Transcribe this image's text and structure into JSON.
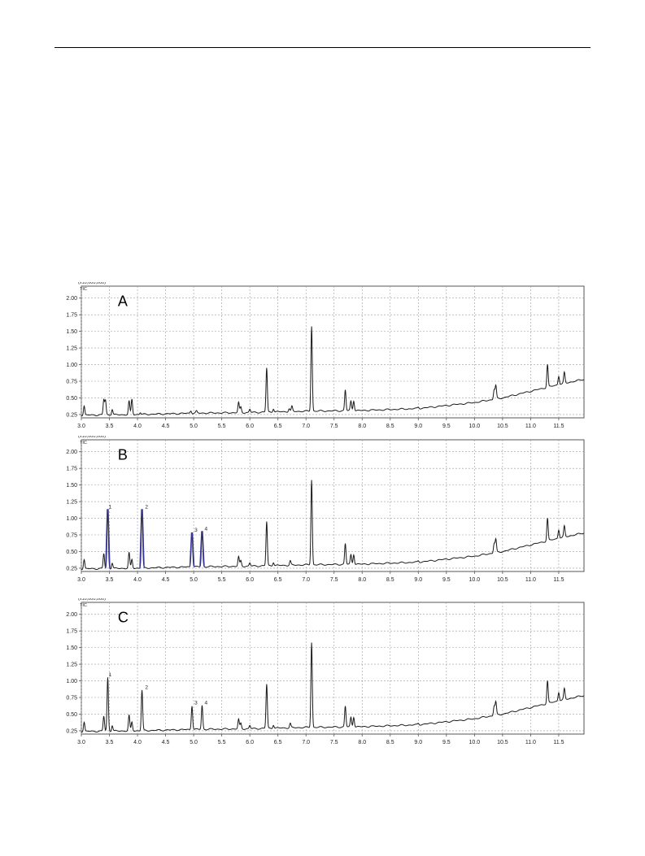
{
  "chart_data": [
    {
      "type": "line",
      "panel_label": "A",
      "scale_label": "(x10,000,000)",
      "trace_label": "TIC",
      "xlim": [
        3.0,
        11.95
      ],
      "ylim": [
        0.2,
        2.18
      ],
      "x_ticks": [
        "3.0",
        "3.5",
        "4.0",
        "4.5",
        "5.0",
        "5.5",
        "6.0",
        "6.5",
        "7.0",
        "7.5",
        "8.0",
        "8.5",
        "9.0",
        "9.5",
        "10.0",
        "10.5",
        "11.0",
        "11.5"
      ],
      "y_ticks": [
        "0.25",
        "0.50",
        "0.75",
        "1.00",
        "1.25",
        "1.50",
        "1.75",
        "2.00"
      ],
      "grid": true,
      "baseline": [
        [
          3.0,
          0.24
        ],
        [
          4.0,
          0.25
        ],
        [
          5.0,
          0.27
        ],
        [
          6.0,
          0.28
        ],
        [
          7.0,
          0.3
        ],
        [
          8.0,
          0.31
        ],
        [
          9.0,
          0.34
        ],
        [
          10.0,
          0.43
        ],
        [
          10.5,
          0.5
        ],
        [
          11.0,
          0.6
        ],
        [
          11.5,
          0.7
        ],
        [
          11.95,
          0.78
        ]
      ],
      "peaks": [
        {
          "x": 3.05,
          "h": 0.38
        },
        {
          "x": 3.4,
          "h": 0.47
        },
        {
          "x": 3.43,
          "h": 0.46
        },
        {
          "x": 3.55,
          "h": 0.33
        },
        {
          "x": 3.85,
          "h": 0.45
        },
        {
          "x": 3.9,
          "h": 0.48
        },
        {
          "x": 4.05,
          "h": 0.28
        },
        {
          "x": 4.95,
          "h": 0.31
        },
        {
          "x": 5.05,
          "h": 0.3
        },
        {
          "x": 5.8,
          "h": 0.43
        },
        {
          "x": 5.84,
          "h": 0.36
        },
        {
          "x": 6.0,
          "h": 0.33
        },
        {
          "x": 6.3,
          "h": 0.95
        },
        {
          "x": 6.42,
          "h": 0.34
        },
        {
          "x": 6.7,
          "h": 0.34
        },
        {
          "x": 6.75,
          "h": 0.37
        },
        {
          "x": 7.1,
          "h": 1.58
        },
        {
          "x": 7.7,
          "h": 0.62
        },
        {
          "x": 7.8,
          "h": 0.45
        },
        {
          "x": 7.85,
          "h": 0.46
        },
        {
          "x": 8.15,
          "h": 0.32
        },
        {
          "x": 9.0,
          "h": 0.36
        },
        {
          "x": 10.35,
          "h": 0.62
        },
        {
          "x": 10.38,
          "h": 0.68
        },
        {
          "x": 11.3,
          "h": 1.0
        },
        {
          "x": 11.5,
          "h": 0.83
        },
        {
          "x": 11.6,
          "h": 0.88
        }
      ],
      "colored_peaks": [],
      "peak_labels": []
    },
    {
      "type": "line",
      "panel_label": "B",
      "scale_label": "(x10,000,000)",
      "trace_label": "TIC",
      "xlim": [
        3.0,
        11.95
      ],
      "ylim": [
        0.2,
        2.18
      ],
      "x_ticks": [
        "3.0",
        "3.5",
        "4.0",
        "4.5",
        "5.0",
        "5.5",
        "6.0",
        "6.5",
        "7.0",
        "7.5",
        "8.0",
        "8.5",
        "9.0",
        "9.5",
        "10.0",
        "10.5",
        "11.0",
        "11.5"
      ],
      "y_ticks": [
        "0.25",
        "0.50",
        "0.75",
        "1.00",
        "1.25",
        "1.50",
        "1.75",
        "2.00"
      ],
      "grid": true,
      "baseline": [
        [
          3.0,
          0.24
        ],
        [
          4.0,
          0.25
        ],
        [
          5.0,
          0.27
        ],
        [
          6.0,
          0.28
        ],
        [
          7.0,
          0.3
        ],
        [
          8.0,
          0.31
        ],
        [
          9.0,
          0.34
        ],
        [
          10.0,
          0.43
        ],
        [
          10.5,
          0.5
        ],
        [
          11.0,
          0.6
        ],
        [
          11.5,
          0.7
        ],
        [
          11.95,
          0.78
        ]
      ],
      "peaks": [
        {
          "x": 3.05,
          "h": 0.38
        },
        {
          "x": 3.4,
          "h": 0.47
        },
        {
          "x": 3.55,
          "h": 0.33
        },
        {
          "x": 3.85,
          "h": 0.48
        },
        {
          "x": 3.9,
          "h": 0.38
        },
        {
          "x": 4.95,
          "h": 0.31
        },
        {
          "x": 5.8,
          "h": 0.42
        },
        {
          "x": 5.84,
          "h": 0.36
        },
        {
          "x": 6.0,
          "h": 0.33
        },
        {
          "x": 6.3,
          "h": 0.95
        },
        {
          "x": 6.42,
          "h": 0.34
        },
        {
          "x": 6.72,
          "h": 0.36
        },
        {
          "x": 7.1,
          "h": 1.58
        },
        {
          "x": 7.7,
          "h": 0.62
        },
        {
          "x": 7.8,
          "h": 0.45
        },
        {
          "x": 7.85,
          "h": 0.46
        },
        {
          "x": 8.15,
          "h": 0.32
        },
        {
          "x": 9.0,
          "h": 0.36
        },
        {
          "x": 10.35,
          "h": 0.62
        },
        {
          "x": 10.38,
          "h": 0.68
        },
        {
          "x": 11.3,
          "h": 1.0
        },
        {
          "x": 11.5,
          "h": 0.83
        },
        {
          "x": 11.6,
          "h": 0.88
        }
      ],
      "colored_peaks": [
        {
          "x": 3.47,
          "h": 1.13
        },
        {
          "x": 4.08,
          "h": 1.13
        },
        {
          "x": 4.97,
          "h": 0.78
        },
        {
          "x": 5.15,
          "h": 0.8
        }
      ],
      "peak_labels": [
        {
          "text": "1",
          "x": 3.47,
          "h": 1.13
        },
        {
          "text": "2",
          "x": 4.12,
          "h": 1.13
        },
        {
          "text": "3",
          "x": 5.0,
          "h": 0.78
        },
        {
          "text": "4",
          "x": 5.18,
          "h": 0.8
        }
      ],
      "peak_color": "#3a3aa0"
    },
    {
      "type": "line",
      "panel_label": "C",
      "scale_label": "(x10,000,000)",
      "trace_label": "TIC",
      "xlim": [
        3.0,
        11.95
      ],
      "ylim": [
        0.2,
        2.18
      ],
      "x_ticks": [
        "3.0",
        "3.5",
        "4.0",
        "4.5",
        "5.0",
        "5.5",
        "6.0",
        "6.5",
        "7.0",
        "7.5",
        "8.0",
        "8.5",
        "9.0",
        "9.5",
        "10.0",
        "10.5",
        "11.0",
        "11.5"
      ],
      "y_ticks": [
        "0.25",
        "0.50",
        "0.75",
        "1.00",
        "1.25",
        "1.50",
        "1.75",
        "2.00"
      ],
      "grid": true,
      "baseline": [
        [
          3.0,
          0.24
        ],
        [
          4.0,
          0.25
        ],
        [
          5.0,
          0.27
        ],
        [
          6.0,
          0.28
        ],
        [
          7.0,
          0.3
        ],
        [
          8.0,
          0.31
        ],
        [
          9.0,
          0.34
        ],
        [
          10.0,
          0.43
        ],
        [
          10.5,
          0.5
        ],
        [
          11.0,
          0.6
        ],
        [
          11.5,
          0.7
        ],
        [
          11.95,
          0.78
        ]
      ],
      "peaks": [
        {
          "x": 3.05,
          "h": 0.38
        },
        {
          "x": 3.4,
          "h": 0.47
        },
        {
          "x": 3.47,
          "h": 1.05
        },
        {
          "x": 3.55,
          "h": 0.33
        },
        {
          "x": 3.85,
          "h": 0.48
        },
        {
          "x": 3.9,
          "h": 0.38
        },
        {
          "x": 4.08,
          "h": 0.86
        },
        {
          "x": 4.97,
          "h": 0.63
        },
        {
          "x": 5.15,
          "h": 0.63
        },
        {
          "x": 5.8,
          "h": 0.42
        },
        {
          "x": 5.84,
          "h": 0.36
        },
        {
          "x": 6.0,
          "h": 0.33
        },
        {
          "x": 6.3,
          "h": 0.95
        },
        {
          "x": 6.42,
          "h": 0.34
        },
        {
          "x": 6.72,
          "h": 0.36
        },
        {
          "x": 7.1,
          "h": 1.58
        },
        {
          "x": 7.7,
          "h": 0.62
        },
        {
          "x": 7.8,
          "h": 0.45
        },
        {
          "x": 7.85,
          "h": 0.46
        },
        {
          "x": 8.15,
          "h": 0.32
        },
        {
          "x": 9.0,
          "h": 0.36
        },
        {
          "x": 10.35,
          "h": 0.62
        },
        {
          "x": 10.38,
          "h": 0.68
        },
        {
          "x": 11.3,
          "h": 1.0
        },
        {
          "x": 11.5,
          "h": 0.83
        },
        {
          "x": 11.6,
          "h": 0.88
        }
      ],
      "colored_peaks": [],
      "peak_labels": [
        {
          "text": "1",
          "x": 3.47,
          "h": 1.05
        },
        {
          "text": "2",
          "x": 4.12,
          "h": 0.86
        },
        {
          "text": "3",
          "x": 5.0,
          "h": 0.63
        },
        {
          "text": "4",
          "x": 5.18,
          "h": 0.63
        }
      ]
    }
  ]
}
